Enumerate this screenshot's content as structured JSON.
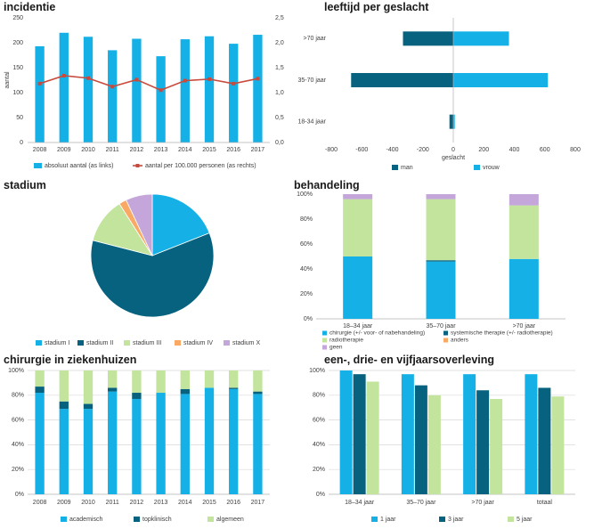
{
  "colors": {
    "light_blue": "#15b1e6",
    "dark_blue": "#06627f",
    "light_green": "#c2e49c",
    "orange": "#f9a964",
    "lilac": "#c5a6db",
    "red_line": "#c94a3c",
    "grid": "#d9d9d9",
    "axis": "#b0b0b0"
  },
  "chart_data": [
    {
      "id": "incidentie",
      "type": "bar+line",
      "title": "incidentie",
      "categories": [
        "2008",
        "2009",
        "2010",
        "2011",
        "2012",
        "2013",
        "2014",
        "2015",
        "2016",
        "2017"
      ],
      "series": [
        {
          "name": "absoluut aantal (as links)",
          "type": "bar",
          "axis": "left",
          "values": [
            193,
            220,
            212,
            185,
            208,
            173,
            207,
            213,
            198,
            216
          ]
        },
        {
          "name": "aantal per 100.000 personen (as rechts)",
          "type": "line",
          "axis": "right",
          "values": [
            1.18,
            1.34,
            1.29,
            1.12,
            1.26,
            1.05,
            1.24,
            1.27,
            1.18,
            1.28
          ]
        }
      ],
      "ylabel": "aantal",
      "ylim": [
        0,
        250
      ],
      "yticks": [
        "0",
        "50",
        "100",
        "150",
        "200",
        "250"
      ],
      "ylim_right": [
        0,
        2.5
      ],
      "yticks_right": [
        "0,0",
        "0,5",
        "1,0",
        "1,5",
        "2,0",
        "2,5"
      ],
      "grid": false,
      "legend": "bottom"
    },
    {
      "id": "leeftijd",
      "type": "bar",
      "orientation": "horizontal",
      "stacking": "diverging",
      "title": "leeftijd per geslacht",
      "categories": [
        ">70 jaar",
        "35-70 jaar",
        "18-34 jaar"
      ],
      "series": [
        {
          "name": "man",
          "values": [
            -330,
            -670,
            -25
          ]
        },
        {
          "name": "vrouw",
          "values": [
            365,
            620,
            10
          ]
        }
      ],
      "xlabel": "geslacht",
      "xlim": [
        -800,
        800
      ],
      "xticks": [
        "-800",
        "-600",
        "-400",
        "-200",
        "0",
        "200",
        "400",
        "600",
        "800"
      ],
      "grid": false,
      "legend": "bottom"
    },
    {
      "id": "stadium",
      "type": "pie",
      "title": "stadium",
      "labels": [
        "stadium I",
        "stadium II",
        "stadium III",
        "stadium IV",
        "stadium X"
      ],
      "values": [
        19,
        60,
        12,
        2,
        7
      ],
      "legend": "bottom"
    },
    {
      "id": "behandeling",
      "type": "bar",
      "stacking": "percent",
      "title": "behandeling",
      "categories": [
        "18–34 jaar",
        "35–70 jaar",
        ">70 jaar"
      ],
      "series": [
        {
          "name": "chirurgie (+/- voor- of nabehandeling)",
          "values": [
            50,
            46,
            48
          ]
        },
        {
          "name": "systemische therapie (+/- radiotherapie)",
          "values": [
            0,
            1,
            0
          ]
        },
        {
          "name": "radiotherapie",
          "values": [
            46,
            49,
            43
          ]
        },
        {
          "name": "anders",
          "values": [
            0,
            0,
            0
          ]
        },
        {
          "name": "geen",
          "values": [
            4,
            4,
            9
          ]
        }
      ],
      "ylim": [
        0,
        100
      ],
      "yticks": [
        "0%",
        "20%",
        "40%",
        "60%",
        "80%",
        "100%"
      ],
      "grid": false,
      "legend": "bottom"
    },
    {
      "id": "chirurgie",
      "type": "bar",
      "stacking": "percent",
      "title": "chirurgie in ziekenhuizen",
      "categories": [
        "2008",
        "2009",
        "2010",
        "2011",
        "2012",
        "2013",
        "2014",
        "2015",
        "2016",
        "2017"
      ],
      "series": [
        {
          "name": "academisch",
          "values": [
            82,
            69,
            69,
            83,
            77,
            82,
            81,
            86,
            85,
            81
          ]
        },
        {
          "name": "topklinisch",
          "values": [
            5,
            6,
            4,
            3,
            5,
            0,
            4,
            0,
            1,
            2
          ]
        },
        {
          "name": "algemeen",
          "values": [
            13,
            25,
            27,
            14,
            18,
            18,
            15,
            14,
            14,
            17
          ]
        }
      ],
      "ylim": [
        0,
        100
      ],
      "yticks": [
        "0%",
        "20%",
        "40%",
        "60%",
        "80%",
        "100%"
      ],
      "grid": true,
      "legend": "bottom"
    },
    {
      "id": "overleving",
      "type": "bar",
      "title": "een-, drie- en vijfjaarsoverleving",
      "categories": [
        "18–34 jaar",
        "35–70 jaar",
        ">70 jaar",
        "totaal"
      ],
      "series": [
        {
          "name": "1 jaar",
          "values": [
            100,
            97,
            97,
            97
          ]
        },
        {
          "name": "3 jaar",
          "values": [
            97,
            88,
            84,
            86
          ]
        },
        {
          "name": "5 jaar",
          "values": [
            91,
            80,
            77,
            79
          ]
        }
      ],
      "ylim": [
        0,
        100
      ],
      "yticks": [
        "0%",
        "20%",
        "40%",
        "60%",
        "80%",
        "100%"
      ],
      "grid": true,
      "legend": "bottom"
    }
  ]
}
